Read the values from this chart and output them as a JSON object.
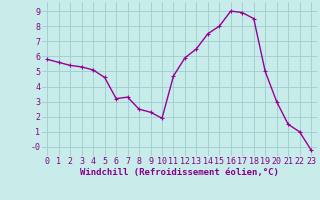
{
  "x": [
    0,
    1,
    2,
    3,
    4,
    5,
    6,
    7,
    8,
    9,
    10,
    11,
    12,
    13,
    14,
    15,
    16,
    17,
    18,
    19,
    20,
    21,
    22,
    23
  ],
  "y": [
    5.8,
    5.6,
    5.4,
    5.3,
    5.1,
    4.6,
    3.2,
    3.3,
    2.5,
    2.3,
    1.9,
    4.7,
    5.9,
    6.5,
    7.5,
    8.0,
    9.0,
    8.9,
    8.5,
    5.0,
    3.0,
    1.5,
    1.0,
    -0.2
  ],
  "line_color": "#990099",
  "marker": "+",
  "marker_size": 3,
  "bg_color": "#c8ecea",
  "grid_color": "#9ecece",
  "xlabel": "Windchill (Refroidissement éolien,°C)",
  "xlim": [
    -0.5,
    23.5
  ],
  "ylim": [
    -0.6,
    9.6
  ],
  "xticks": [
    0,
    1,
    2,
    3,
    4,
    5,
    6,
    7,
    8,
    9,
    10,
    11,
    12,
    13,
    14,
    15,
    16,
    17,
    18,
    19,
    20,
    21,
    22,
    23
  ],
  "yticks": [
    0,
    1,
    2,
    3,
    4,
    5,
    6,
    7,
    8,
    9
  ],
  "ytick_labels": [
    "-0",
    "1",
    "2",
    "3",
    "4",
    "5",
    "6",
    "7",
    "8",
    "9"
  ],
  "xlabel_fontsize": 6.5,
  "tick_fontsize": 6,
  "line_width": 1.0,
  "text_color": "#880088"
}
